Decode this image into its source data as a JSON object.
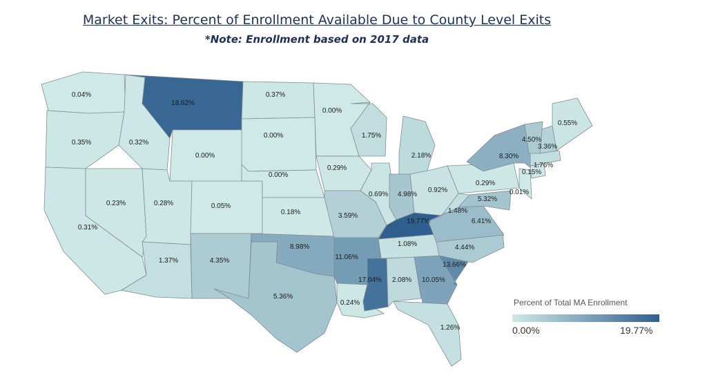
{
  "title": "Market Exits: Percent of Enrollment Available Due to County Level Exits",
  "subtitle": "*Note: Enrollment based on 2017 data",
  "legend": {
    "title": "Percent of Total MA Enrollment",
    "min_label": "0.00%",
    "max_label": "19.77%",
    "min_color": "#cfe9e6",
    "max_color": "#2f5f8f"
  },
  "map_data": {
    "type": "choropleth",
    "region": "United States",
    "value_range": [
      0.0,
      19.77
    ],
    "states": [
      {
        "state": "WA",
        "value": 0.04,
        "label": "0.04%"
      },
      {
        "state": "OR",
        "value": 0.35,
        "label": "0.35%"
      },
      {
        "state": "CA",
        "value": 0.31,
        "label": "0.31%"
      },
      {
        "state": "ID",
        "value": 0.32,
        "label": "0.32%"
      },
      {
        "state": "NV",
        "value": 0.23,
        "label": "0.23%"
      },
      {
        "state": "MT",
        "value": 18.62,
        "label": "18.62%"
      },
      {
        "state": "WY",
        "value": 0.0,
        "label": "0.00%"
      },
      {
        "state": "UT",
        "value": 0.28,
        "label": "0.28%"
      },
      {
        "state": "AZ",
        "value": 1.37,
        "label": "1.37%"
      },
      {
        "state": "CO",
        "value": 0.05,
        "label": "0.05%"
      },
      {
        "state": "NM",
        "value": 4.35,
        "label": "4.35%"
      },
      {
        "state": "ND",
        "value": 0.37,
        "label": "0.37%"
      },
      {
        "state": "SD",
        "value": 0.0,
        "label": "0.00%"
      },
      {
        "state": "NE",
        "value": 0.0,
        "label": "0.00%"
      },
      {
        "state": "KS",
        "value": 0.18,
        "label": "0.18%"
      },
      {
        "state": "OK",
        "value": 8.98,
        "label": "8.98%"
      },
      {
        "state": "TX",
        "value": 5.36,
        "label": "5.36%"
      },
      {
        "state": "MN",
        "value": 0.0,
        "label": "0.00%"
      },
      {
        "state": "IA",
        "value": 0.29,
        "label": "0.29%"
      },
      {
        "state": "MO",
        "value": 3.59,
        "label": "3.59%"
      },
      {
        "state": "AR",
        "value": 11.06,
        "label": "11.06%"
      },
      {
        "state": "LA",
        "value": 0.24,
        "label": "0.24%"
      },
      {
        "state": "WI",
        "value": 1.75,
        "label": "1.75%"
      },
      {
        "state": "IL",
        "value": 0.69,
        "label": "0.69%"
      },
      {
        "state": "MI",
        "value": 2.18,
        "label": "2.18%"
      },
      {
        "state": "IN",
        "value": 4.98,
        "label": "4.98%"
      },
      {
        "state": "OH",
        "value": 0.92,
        "label": "0.92%"
      },
      {
        "state": "KY",
        "value": 19.77,
        "label": "19.77%"
      },
      {
        "state": "TN",
        "value": 1.08,
        "label": "1.08%"
      },
      {
        "state": "MS",
        "value": 17.04,
        "label": "17.04%"
      },
      {
        "state": "AL",
        "value": 2.08,
        "label": "2.08%"
      },
      {
        "state": "GA",
        "value": 10.05,
        "label": "10.05%"
      },
      {
        "state": "FL",
        "value": 1.26,
        "label": "1.26%"
      },
      {
        "state": "SC",
        "value": 13.66,
        "label": "13.66%"
      },
      {
        "state": "NC",
        "value": 4.44,
        "label": "4.44%"
      },
      {
        "state": "VA",
        "value": 6.41,
        "label": "6.41%"
      },
      {
        "state": "WV",
        "value": 1.48,
        "label": "1.48%"
      },
      {
        "state": "MD",
        "value": 5.32,
        "label": "5.32%"
      },
      {
        "state": "PA",
        "value": 0.29,
        "label": "0.29%"
      },
      {
        "state": "NJ",
        "value": 0.01,
        "label": "0.01%"
      },
      {
        "state": "NY",
        "value": 8.3,
        "label": "8.30%"
      },
      {
        "state": "CT",
        "value": 0.15,
        "label": "0.15%"
      },
      {
        "state": "MA",
        "value": 1.76,
        "label": "1.76%"
      },
      {
        "state": "NH",
        "value": 3.36,
        "label": "3.36%"
      },
      {
        "state": "VT",
        "value": 4.5,
        "label": "4.50%"
      },
      {
        "state": "ME",
        "value": 0.55,
        "label": "0.55%"
      }
    ]
  }
}
